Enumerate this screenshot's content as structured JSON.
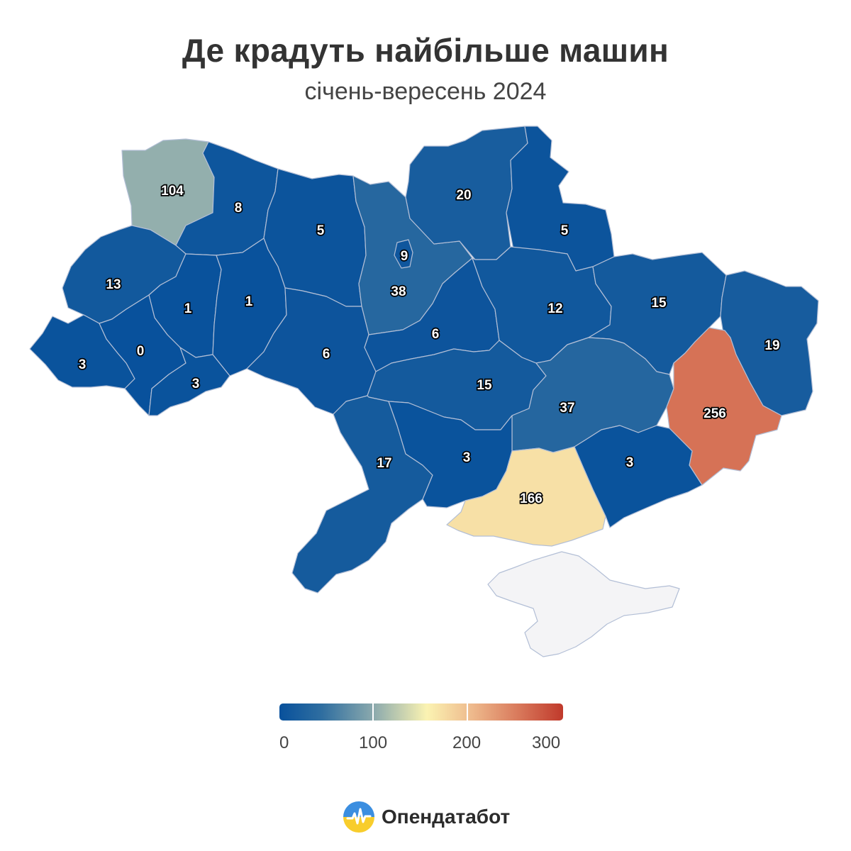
{
  "header": {
    "title": "Де крадуть найбільше машин",
    "subtitle": "січень-вересень 2024"
  },
  "map": {
    "color_scale": {
      "min": 0,
      "max": 300,
      "stops": [
        "#08519c",
        "#2f6ea0",
        "#8aa9ad",
        "#fbf3b2",
        "#eeb98c",
        "#d97a5c",
        "#c0392b"
      ]
    },
    "regions": [
      {
        "name": "Volyn",
        "value": 104
      },
      {
        "name": "Rivne",
        "value": 8
      },
      {
        "name": "Zhytomyr",
        "value": 5
      },
      {
        "name": "Kyiv oblast",
        "value": 38
      },
      {
        "name": "Kyiv city",
        "value": 9
      },
      {
        "name": "Chernihiv",
        "value": 20
      },
      {
        "name": "Sumy",
        "value": 5
      },
      {
        "name": "Lviv",
        "value": 13
      },
      {
        "name": "Ternopil",
        "value": 1
      },
      {
        "name": "Khmelnytskyi",
        "value": 1
      },
      {
        "name": "Vinnytsia",
        "value": 6
      },
      {
        "name": "Cherkasy",
        "value": 6
      },
      {
        "name": "Poltava",
        "value": 12
      },
      {
        "name": "Kharkiv",
        "value": 15
      },
      {
        "name": "Luhansk",
        "value": 19
      },
      {
        "name": "Zakarpattia",
        "value": 3
      },
      {
        "name": "Ivano-Frankivsk",
        "value": 0
      },
      {
        "name": "Chernivtsi",
        "value": 3
      },
      {
        "name": "Kirovohrad",
        "value": 15
      },
      {
        "name": "Dnipropetrovsk",
        "value": 37
      },
      {
        "name": "Donetsk",
        "value": 256
      },
      {
        "name": "Odesa",
        "value": 17
      },
      {
        "name": "Mykolaiv",
        "value": 3
      },
      {
        "name": "Kherson",
        "value": 166
      },
      {
        "name": "Zaporizhzhia",
        "value": 3
      },
      {
        "name": "Crimea",
        "value": null
      }
    ]
  },
  "legend": {
    "labels": [
      "0",
      "100",
      "200",
      "300"
    ]
  },
  "brand": {
    "name": "Опендатабот"
  }
}
